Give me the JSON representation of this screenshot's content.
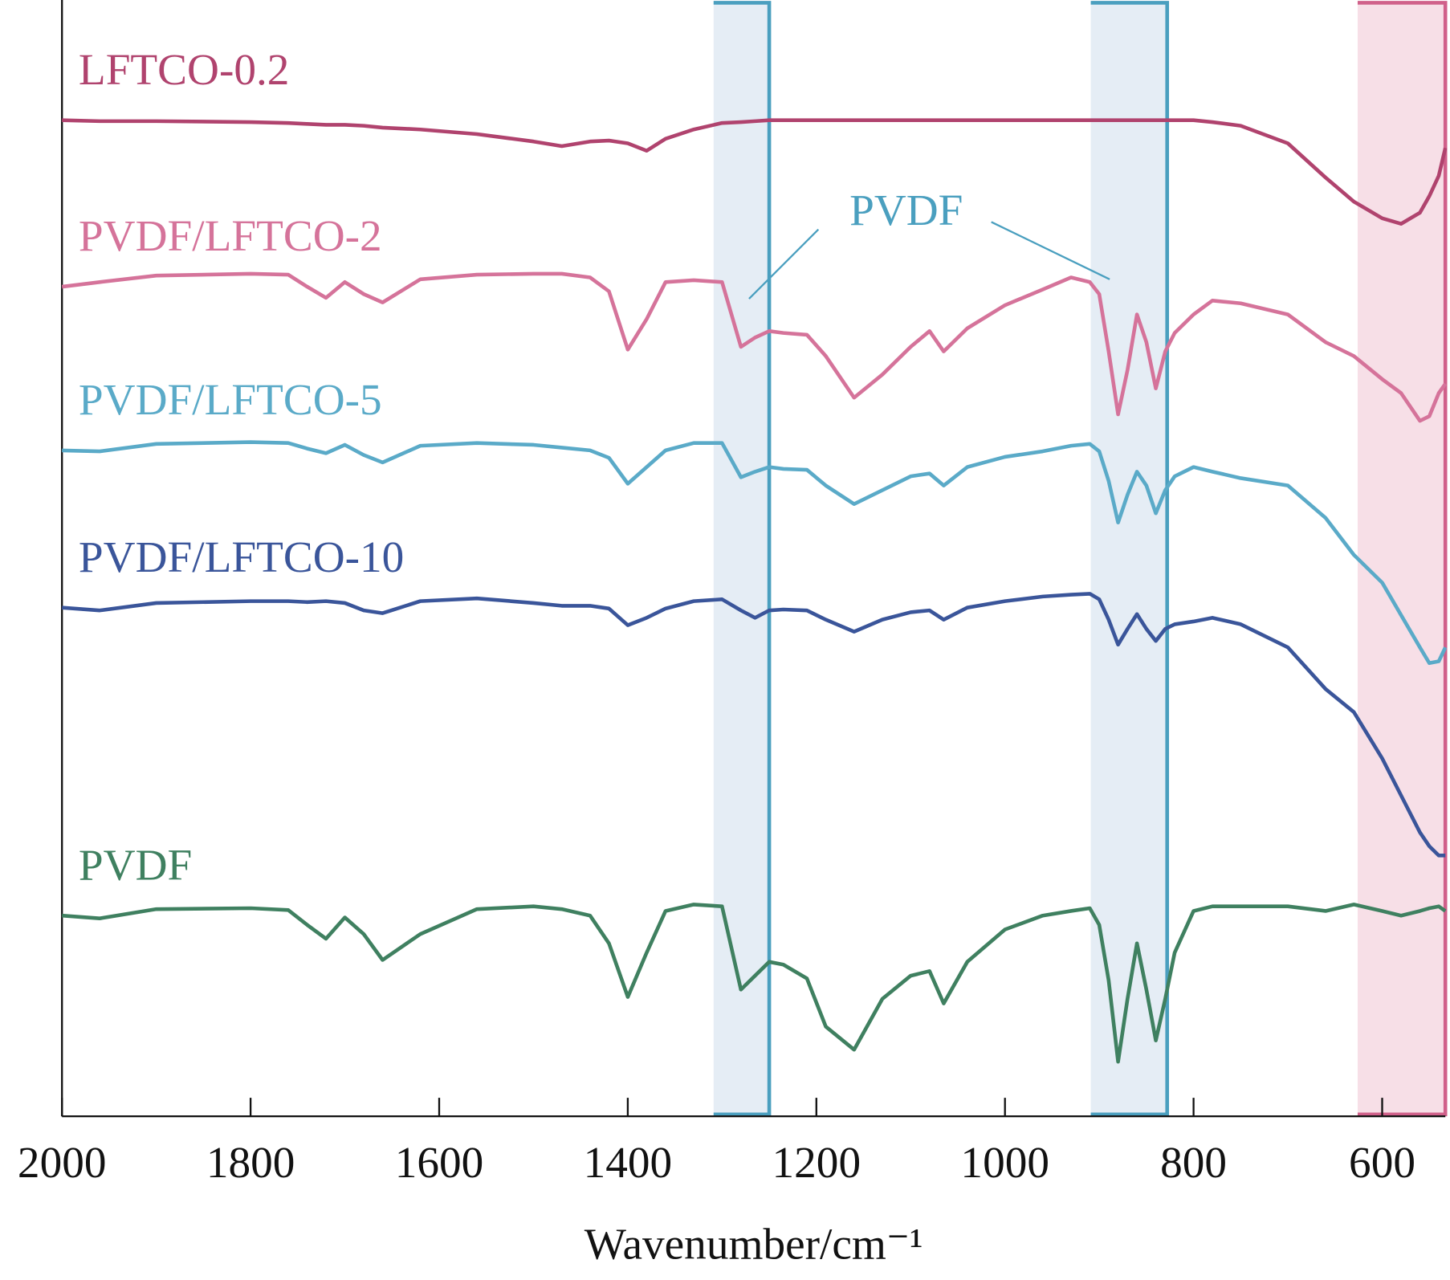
{
  "chart_data": {
    "type": "line",
    "xlabel": "Wavenumber/cm⁻¹",
    "xlim": [
      2000,
      533
    ],
    "xticks": [
      2000,
      1800,
      1600,
      1400,
      1200,
      1000,
      800,
      600
    ],
    "ylim": [
      0,
      121
    ],
    "annotations": [
      {
        "text": "PVDF"
      }
    ],
    "regions": [
      {
        "xlim": [
          1309,
          1250
        ],
        "color": "#4a9fbf",
        "fill": "#e5edf5"
      },
      {
        "xlim": [
          909,
          828
        ],
        "color": "#4a9fbf",
        "fill": "#e5edf5"
      },
      {
        "xlim": [
          626,
          533
        ],
        "color": "#d0608a",
        "fill": "#f7dfe7"
      }
    ],
    "x": [
      2000,
      1960,
      1900,
      1800,
      1760,
      1740,
      1720,
      1700,
      1680,
      1660,
      1620,
      1560,
      1500,
      1470,
      1440,
      1420,
      1400,
      1380,
      1360,
      1330,
      1300,
      1280,
      1265,
      1250,
      1235,
      1210,
      1190,
      1160,
      1130,
      1100,
      1080,
      1065,
      1040,
      1000,
      960,
      930,
      910,
      900,
      890,
      880,
      870,
      860,
      850,
      840,
      830,
      820,
      800,
      780,
      750,
      700,
      660,
      630,
      600,
      580,
      560,
      550,
      540,
      533
    ],
    "series": [
      {
        "name": "LFTCO-0.2",
        "color": "#b0436e",
        "values": [
          107.7,
          107.6,
          107.6,
          107.5,
          107.4,
          107.3,
          107.2,
          107.2,
          107.1,
          106.9,
          106.7,
          106.2,
          105.4,
          104.9,
          105.4,
          105.5,
          105.2,
          104.4,
          105.7,
          106.7,
          107.4,
          107.5,
          107.6,
          107.7,
          107.7,
          107.7,
          107.7,
          107.7,
          107.7,
          107.7,
          107.7,
          107.7,
          107.7,
          107.7,
          107.7,
          107.7,
          107.7,
          107.7,
          107.7,
          107.7,
          107.7,
          107.7,
          107.7,
          107.7,
          107.7,
          107.7,
          107.7,
          107.5,
          107.1,
          105.2,
          101.5,
          98.9,
          97.1,
          96.5,
          97.7,
          99.5,
          101.7,
          104.7
        ]
      },
      {
        "name": "PVDF/LFTCO-2",
        "color": "#d5739a",
        "values": [
          89.7,
          90.2,
          90.9,
          91.1,
          91.0,
          89.7,
          88.5,
          90.2,
          88.9,
          88.0,
          90.5,
          91.0,
          91.1,
          91.1,
          90.7,
          89.2,
          82.9,
          86.2,
          90.2,
          90.4,
          90.2,
          83.2,
          84.2,
          84.9,
          84.7,
          84.5,
          82.2,
          77.7,
          80.2,
          83.2,
          84.9,
          82.7,
          85.2,
          87.7,
          89.4,
          90.7,
          90.2,
          88.9,
          82.7,
          75.9,
          80.7,
          86.7,
          83.7,
          78.7,
          82.7,
          84.7,
          86.7,
          88.2,
          87.9,
          86.7,
          83.7,
          82.2,
          79.7,
          78.2,
          75.2,
          75.7,
          78.2,
          79.2
        ]
      },
      {
        "name": "PVDF/LFTCO-5",
        "color": "#5aaac8",
        "values": [
          72.0,
          71.9,
          72.7,
          72.9,
          72.8,
          72.2,
          71.7,
          72.6,
          71.5,
          70.7,
          72.5,
          72.8,
          72.6,
          72.3,
          72.0,
          71.2,
          68.4,
          70.2,
          72.0,
          72.8,
          72.8,
          69.1,
          69.7,
          70.2,
          70.0,
          69.9,
          68.2,
          66.2,
          67.7,
          69.2,
          69.5,
          68.2,
          70.2,
          71.3,
          71.9,
          72.5,
          72.7,
          71.9,
          68.7,
          64.2,
          67.2,
          69.7,
          68.2,
          65.2,
          67.7,
          69.2,
          70.2,
          69.7,
          69.0,
          68.2,
          64.7,
          60.7,
          57.7,
          54.2,
          50.7,
          49.0,
          49.2,
          50.7
        ]
      },
      {
        "name": "PVDF/LFTCO-10",
        "color": "#3a559a",
        "values": [
          55.0,
          54.7,
          55.5,
          55.7,
          55.7,
          55.6,
          55.7,
          55.5,
          54.7,
          54.4,
          55.7,
          56.0,
          55.5,
          55.2,
          55.2,
          54.9,
          53.1,
          53.9,
          54.9,
          55.7,
          55.9,
          54.7,
          53.9,
          54.7,
          54.8,
          54.7,
          53.7,
          52.4,
          53.7,
          54.5,
          54.7,
          53.7,
          55.0,
          55.7,
          56.2,
          56.4,
          56.5,
          55.9,
          53.7,
          51.0,
          52.7,
          54.3,
          52.7,
          51.4,
          52.7,
          53.2,
          53.5,
          53.9,
          53.2,
          50.7,
          46.2,
          43.7,
          38.7,
          34.7,
          30.7,
          29.2,
          28.2,
          28.2
        ]
      },
      {
        "name": "PVDF",
        "color": "#3f8060",
        "values": [
          21.7,
          21.4,
          22.4,
          22.5,
          22.3,
          20.7,
          19.2,
          21.5,
          19.7,
          16.9,
          19.7,
          22.4,
          22.7,
          22.4,
          21.7,
          18.7,
          12.9,
          17.7,
          22.2,
          22.9,
          22.7,
          13.7,
          15.2,
          16.7,
          16.4,
          14.9,
          9.7,
          7.2,
          12.7,
          15.2,
          15.7,
          12.2,
          16.7,
          20.2,
          21.7,
          22.2,
          22.5,
          20.7,
          14.7,
          5.9,
          12.7,
          18.7,
          13.7,
          8.2,
          12.7,
          17.7,
          22.2,
          22.7,
          22.7,
          22.7,
          22.2,
          22.9,
          22.2,
          21.7,
          22.2,
          22.5,
          22.7,
          22.2
        ]
      }
    ]
  }
}
